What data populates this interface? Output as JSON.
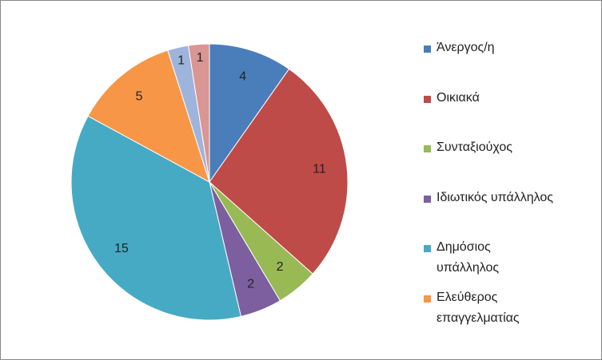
{
  "chart_data": {
    "type": "pie",
    "categories": [
      "Άνεργος/η",
      "Οικιακά",
      "Συνταξιούχος",
      "Ιδιωτικός υπάλληλος",
      "Δημόσιος υπάλληλος",
      "Ελεύθερος επαγγελματίας",
      null,
      null
    ],
    "values": [
      4,
      11,
      2,
      2,
      15,
      5,
      1,
      1
    ],
    "colors": [
      "#4a7ebb",
      "#be4b48",
      "#98b954",
      "#7d5fa0",
      "#46aac5",
      "#f79646",
      "#9fb4dc",
      "#d99694"
    ]
  }
}
